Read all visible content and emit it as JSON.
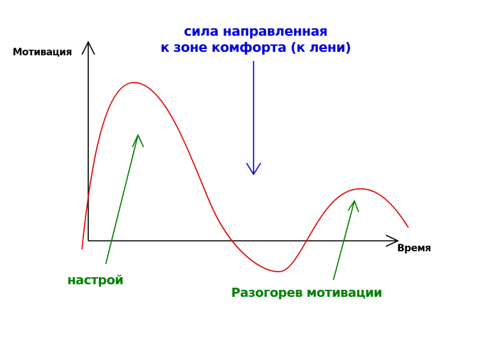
{
  "force_label": {
    "line1": "сила направленная",
    "line2": "к зоне комфорта (к лени)"
  },
  "axes": {
    "y_label": "Мотивация",
    "x_label": "Время"
  },
  "annotations": {
    "mood": "настрой",
    "warmup": "Разогорев мотивации"
  },
  "colors": {
    "curve": "#e00000",
    "axes": "#000000",
    "force": "#0000dd",
    "annotation": "#008000"
  }
}
